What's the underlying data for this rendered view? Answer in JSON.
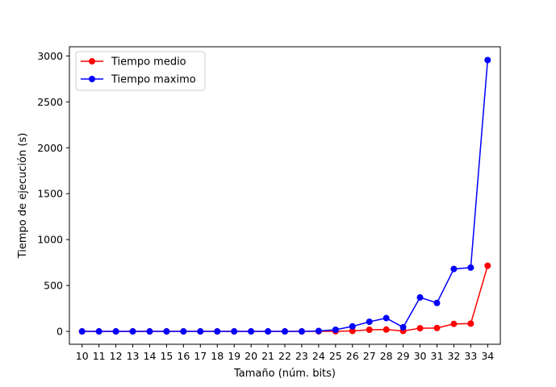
{
  "chart_data": {
    "type": "line",
    "xlabel": "Tamaño (núm. bits)",
    "ylabel": "Tiempo de ejecución (s)",
    "x": [
      10,
      11,
      12,
      13,
      14,
      15,
      16,
      17,
      18,
      19,
      20,
      21,
      22,
      23,
      24,
      25,
      26,
      27,
      28,
      29,
      30,
      31,
      32,
      33,
      34
    ],
    "xticks": [
      "10",
      "11",
      "12",
      "13",
      "14",
      "15",
      "16",
      "17",
      "18",
      "19",
      "20",
      "21",
      "22",
      "23",
      "24",
      "25",
      "26",
      "27",
      "28",
      "29",
      "30",
      "31",
      "32",
      "33",
      "34"
    ],
    "yticks": [
      0,
      500,
      1000,
      1500,
      2000,
      2500,
      3000
    ],
    "ylim": [
      -140,
      3100
    ],
    "grid": false,
    "legend_position": "top-left",
    "series": [
      {
        "name": "Tiempo medio",
        "color": "#ff0000",
        "marker": "circle",
        "values": [
          0,
          0,
          0,
          0,
          0,
          0,
          0,
          0,
          0,
          0,
          0,
          0,
          0,
          0,
          1,
          2,
          5,
          18,
          20,
          5,
          35,
          37,
          82,
          85,
          715
        ]
      },
      {
        "name": "Tiempo maximo",
        "color": "#0000ff",
        "marker": "circle",
        "values": [
          0,
          0,
          0,
          0,
          0,
          0,
          0,
          0,
          0,
          0,
          0,
          0,
          0,
          0,
          5,
          18,
          55,
          105,
          145,
          45,
          370,
          310,
          680,
          695,
          2955
        ]
      }
    ]
  }
}
